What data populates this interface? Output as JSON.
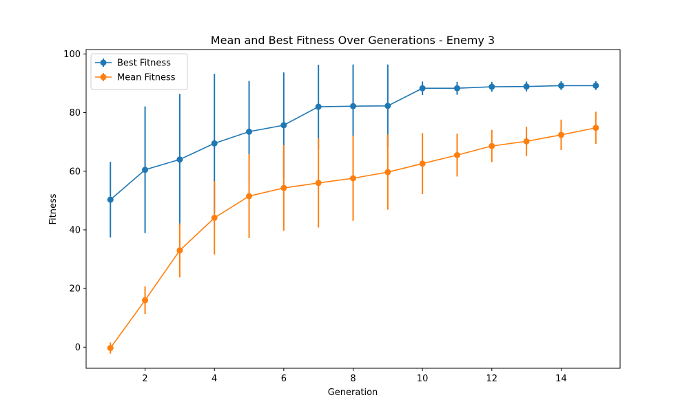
{
  "chart_data": {
    "type": "line",
    "title": "Mean and Best Fitness Over Generations - Enemy 3",
    "xlabel": "Generation",
    "ylabel": "Fitness",
    "x": [
      1,
      2,
      3,
      4,
      5,
      6,
      7,
      8,
      9,
      10,
      11,
      12,
      13,
      14,
      15
    ],
    "xlim": [
      0.3,
      15.7
    ],
    "ylim": [
      -7.2,
      101.5
    ],
    "xticks": [
      2,
      4,
      6,
      8,
      10,
      12,
      14
    ],
    "yticks": [
      0,
      20,
      40,
      60,
      80,
      100
    ],
    "grid": false,
    "legend_position": "top-left",
    "series": [
      {
        "name": "Best Fitness",
        "color": "#1f77b4",
        "values": [
          50.3,
          60.5,
          64.0,
          69.5,
          73.5,
          75.7,
          82.0,
          82.2,
          82.3,
          88.3,
          88.3,
          88.8,
          88.9,
          89.2,
          89.2
        ],
        "error": [
          12.9,
          21.6,
          22.4,
          23.7,
          17.3,
          18.0,
          14.3,
          14.2,
          14.1,
          2.3,
          2.2,
          1.7,
          1.7,
          1.5,
          1.5
        ]
      },
      {
        "name": "Mean Fitness",
        "color": "#ff7f0e",
        "values": [
          -0.3,
          16.0,
          33.0,
          44.1,
          51.5,
          54.3,
          56.0,
          57.6,
          59.7,
          62.6,
          65.5,
          68.6,
          70.2,
          72.4,
          74.8
        ],
        "error": [
          1.9,
          4.7,
          9.2,
          12.5,
          14.3,
          14.6,
          15.2,
          14.5,
          12.8,
          10.4,
          7.3,
          5.5,
          5.0,
          5.2,
          5.5
        ]
      }
    ]
  }
}
